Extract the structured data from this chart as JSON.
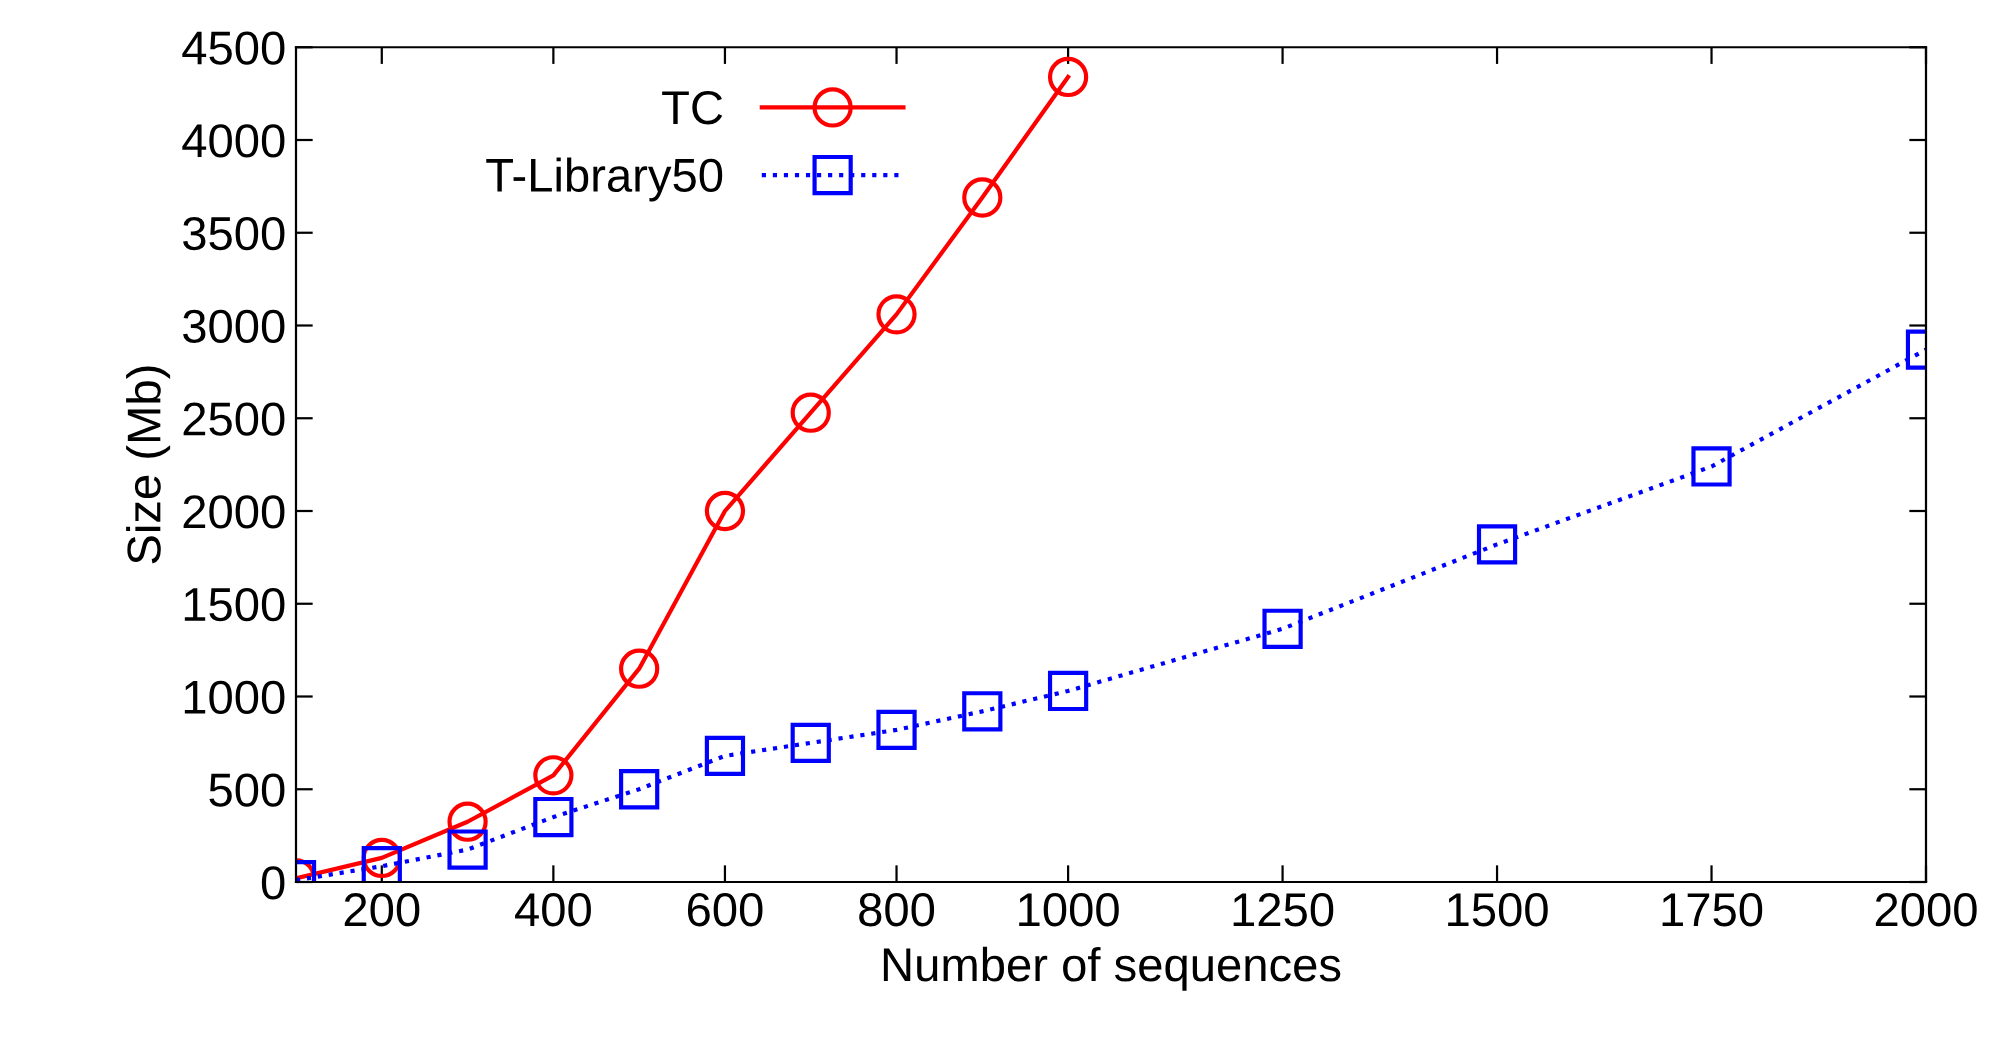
{
  "chart_data": {
    "type": "line",
    "xlabel": "Number of sequences",
    "ylabel": "Size (Mb)",
    "xlim": [
      100,
      2000
    ],
    "xticks": [
      200,
      400,
      600,
      800,
      1000,
      1250,
      1500,
      1750,
      2000
    ],
    "ylim": [
      0,
      4500
    ],
    "yticks": [
      0,
      500,
      1000,
      1500,
      2000,
      2500,
      3000,
      3500,
      4000,
      4500
    ],
    "grid": false,
    "legend": "top left",
    "series": [
      {
        "name": "TC",
        "color": "#ff0000",
        "marker": "circle",
        "line_style": "solid",
        "x": [
          100,
          200,
          300,
          400,
          500,
          600,
          700,
          800,
          900,
          1000
        ],
        "values": [
          20,
          130,
          325,
          575,
          1150,
          2000,
          2530,
          3060,
          3690,
          4340
        ]
      },
      {
        "name": "T-Library50",
        "color": "#0000ff",
        "marker": "square",
        "line_style": "dotted",
        "x": [
          100,
          200,
          300,
          400,
          500,
          600,
          700,
          800,
          900,
          1000,
          1250,
          1500,
          1750,
          2000
        ],
        "values": [
          10,
          85,
          175,
          350,
          500,
          680,
          750,
          820,
          920,
          1030,
          1365,
          1820,
          2240,
          2870
        ]
      }
    ]
  }
}
